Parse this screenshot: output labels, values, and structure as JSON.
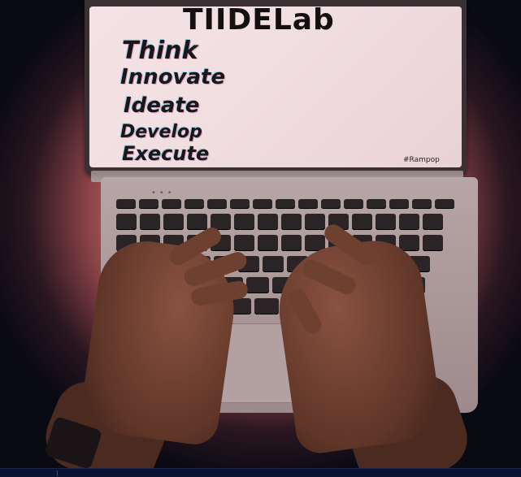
{
  "screen": {
    "title": "TIIDELab",
    "words": [
      "Think",
      "Innovate",
      "Ideate",
      "Develop",
      "Execute"
    ],
    "hashtag": "#Rampop"
  },
  "colors": {
    "glow": "#d27f7a",
    "screen_bg": "#f0dde0",
    "text": "#141012",
    "skin": "#6a3e2e",
    "bottom_bar": "#0c1330"
  }
}
